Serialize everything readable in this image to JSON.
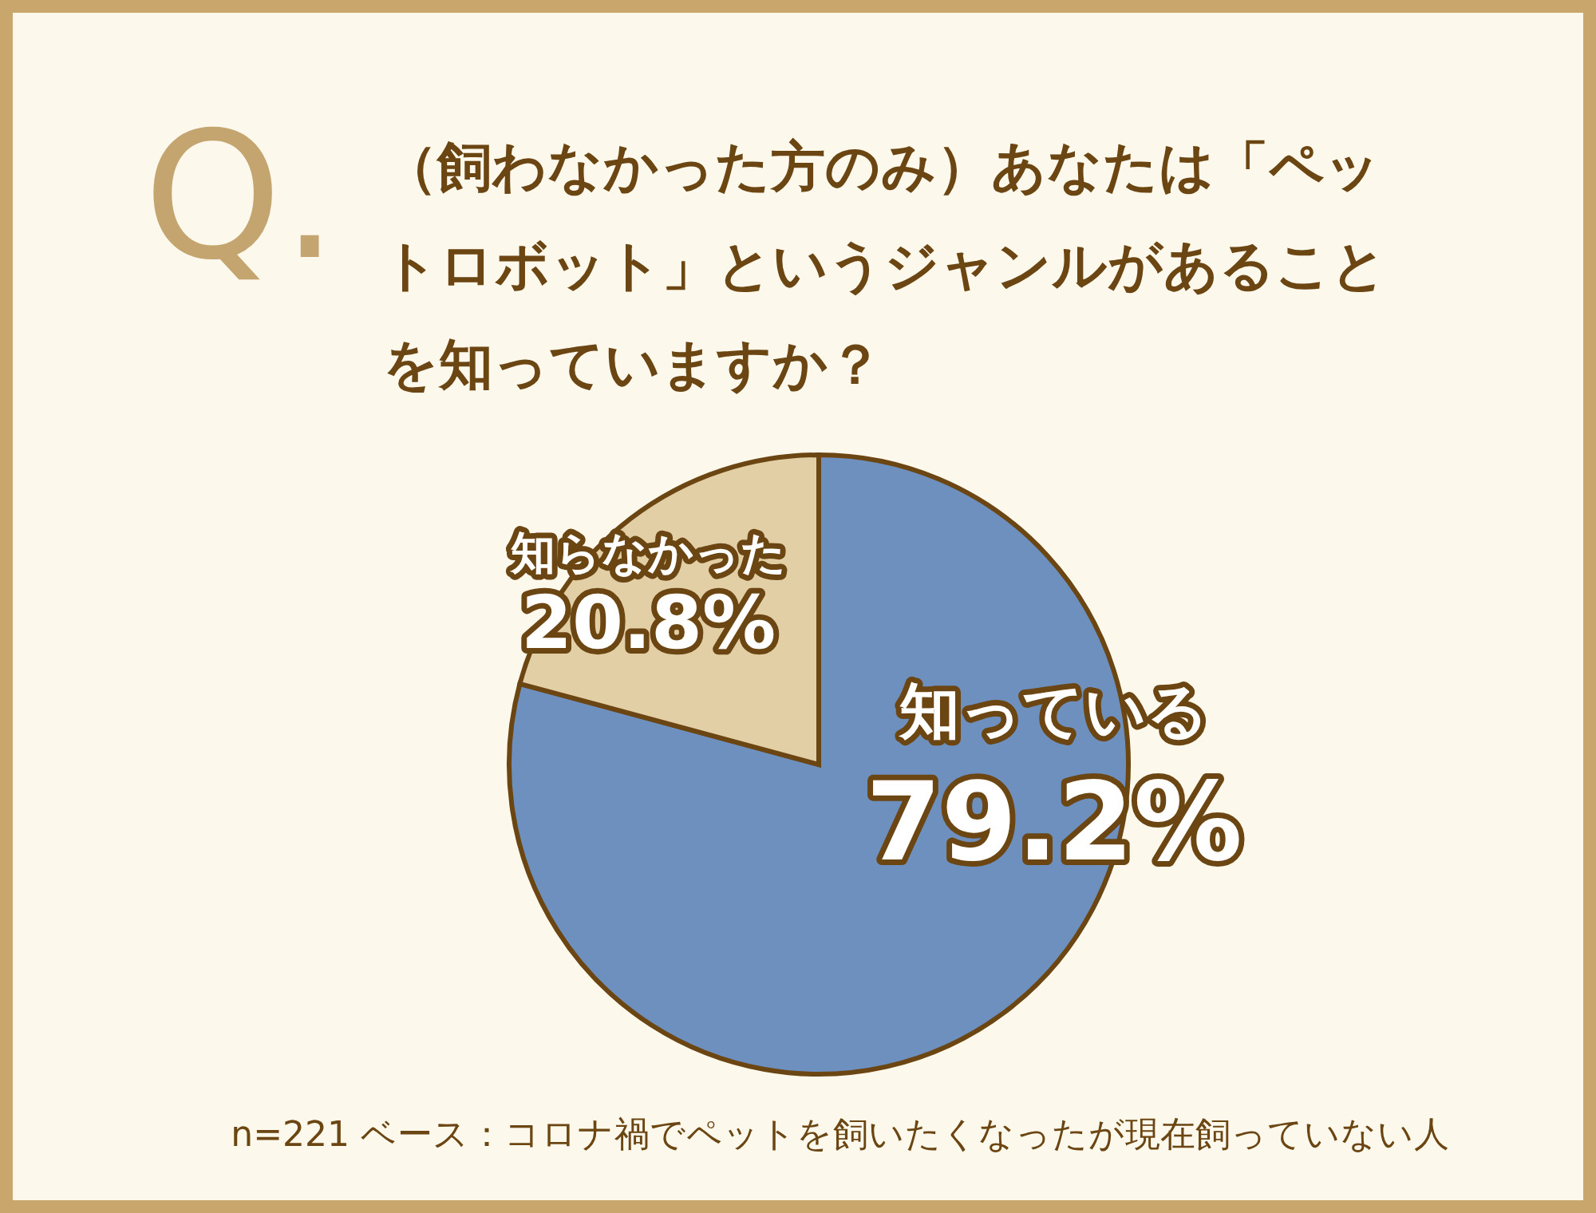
{
  "chart_data": {
    "type": "pie",
    "title": "（飼わなかった方のみ）あなたは「ペットロボット」というジャンルがあることを知っていますか？",
    "categories": [
      "知っている",
      "知らなかった"
    ],
    "values": [
      79.2,
      20.8
    ],
    "colors": [
      "#6e90bf",
      "#e2cfa5"
    ],
    "value_labels": [
      "79.2%",
      "20.8%"
    ],
    "annotations": [
      "Q.",
      "n=221 ベース：コロナ禍でペットを飼いたくなったが現在飼っていない人"
    ]
  }
}
